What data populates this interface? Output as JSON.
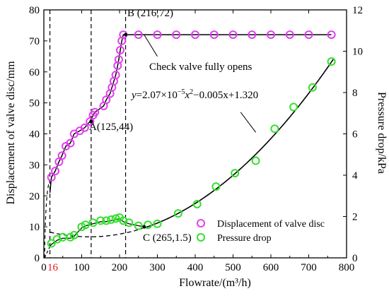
{
  "chart_data": {
    "type": "scatter",
    "xlabel": "Flowrate/(m³/h)",
    "ylabel_left": "Displacement of valve disc/mm",
    "ylabel_right": "Pressure drop/kPa",
    "x_axis": {
      "range": [
        0,
        800
      ],
      "ticks": [
        "0",
        "100",
        "200",
        "300",
        "400",
        "500",
        "600",
        "700",
        "800"
      ]
    },
    "y_left_axis": {
      "range": [
        0,
        80
      ],
      "ticks": [
        "0",
        "10",
        "20",
        "30",
        "40",
        "50",
        "60",
        "70",
        "80"
      ]
    },
    "y_right_axis": {
      "range": [
        0,
        12
      ],
      "ticks": [
        "0",
        "2",
        "4",
        "6",
        "8",
        "10",
        "12"
      ]
    },
    "extra_x_tick": {
      "value": 16,
      "label": "16",
      "color": "#e8141b"
    },
    "vertical_markers": [
      16,
      125,
      216
    ],
    "series": [
      {
        "name": "Displacement of valve disc",
        "axis": "left",
        "marker": "open-circle",
        "color": "#e040ee",
        "points": [
          [
            20,
            26
          ],
          [
            30,
            28
          ],
          [
            40,
            31
          ],
          [
            48,
            33
          ],
          [
            58,
            36
          ],
          [
            70,
            37
          ],
          [
            80,
            40
          ],
          [
            95,
            41
          ],
          [
            108,
            42
          ],
          [
            122,
            44
          ],
          [
            130,
            46
          ],
          [
            135,
            47
          ],
          [
            158,
            49
          ],
          [
            165,
            51
          ],
          [
            175,
            53
          ],
          [
            180,
            55
          ],
          [
            185,
            57
          ],
          [
            190,
            59
          ],
          [
            195,
            62
          ],
          [
            198,
            64
          ],
          [
            202,
            67
          ],
          [
            206,
            70
          ],
          [
            210,
            72
          ],
          [
            250,
            72
          ],
          [
            300,
            72
          ],
          [
            350,
            72
          ],
          [
            400,
            72
          ],
          [
            450,
            72
          ],
          [
            500,
            72
          ],
          [
            550,
            72
          ],
          [
            600,
            72
          ],
          [
            650,
            72
          ],
          [
            700,
            72
          ],
          [
            760,
            72
          ]
        ]
      },
      {
        "name": "Pressure drop",
        "axis": "right",
        "marker": "open-circle",
        "color": "#33e02e",
        "points": [
          [
            20,
            0.7
          ],
          [
            35,
            0.9
          ],
          [
            50,
            1.0
          ],
          [
            70,
            1.0
          ],
          [
            80,
            1.1
          ],
          [
            100,
            1.5
          ],
          [
            110,
            1.6
          ],
          [
            130,
            1.7
          ],
          [
            150,
            1.8
          ],
          [
            165,
            1.8
          ],
          [
            178,
            1.85
          ],
          [
            190,
            1.9
          ],
          [
            200,
            1.95
          ],
          [
            210,
            1.8
          ],
          [
            225,
            1.7
          ],
          [
            250,
            1.55
          ],
          [
            275,
            1.6
          ],
          [
            300,
            1.65
          ],
          [
            355,
            2.15
          ],
          [
            405,
            2.6
          ],
          [
            455,
            3.45
          ],
          [
            505,
            4.1
          ],
          [
            560,
            4.7
          ],
          [
            610,
            6.25
          ],
          [
            660,
            7.3
          ],
          [
            710,
            8.25
          ],
          [
            760,
            9.5
          ]
        ]
      }
    ],
    "annotations": {
      "point_a": {
        "label": "A(125,44)"
      },
      "point_b": {
        "label": "B (216,72)"
      },
      "point_c": {
        "label": "C (265,1.5)"
      },
      "fit_equation": {
        "prefix": "y",
        "text": "=2.07×10",
        "exp": "−5",
        "text2": "x",
        "exp2": "2",
        "text3": "−0.005x+1.320"
      },
      "check_valve": {
        "label": "Check valve fully opens"
      }
    },
    "legend": {
      "placement": "bottom-right"
    }
  }
}
